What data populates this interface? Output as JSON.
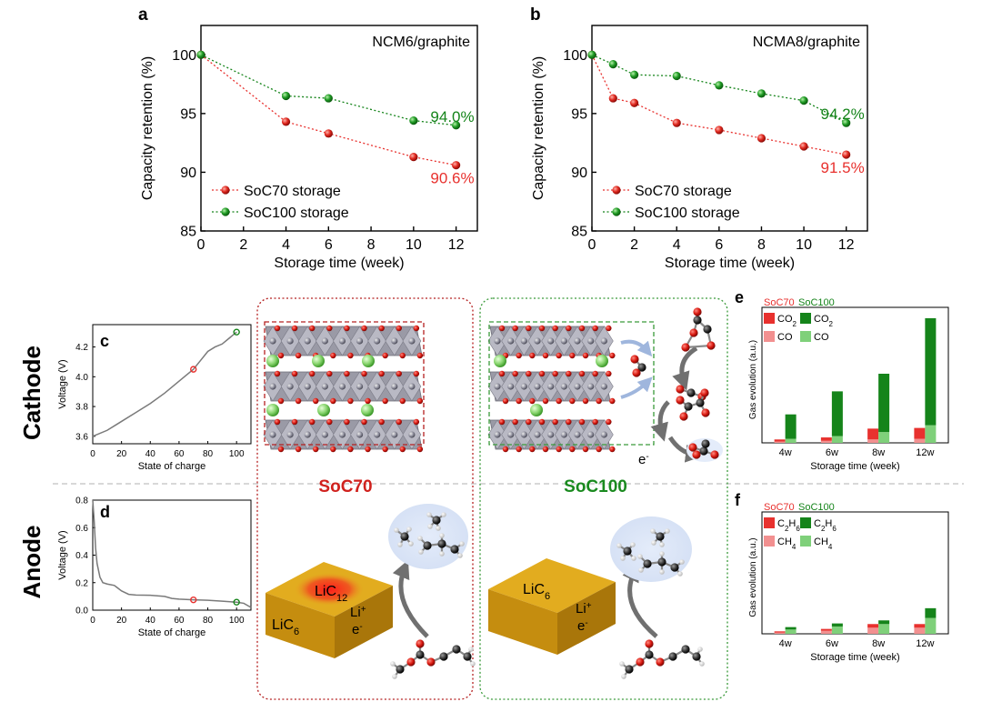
{
  "panel_letters": {
    "a": "a",
    "b": "b",
    "c": "c",
    "d": "d",
    "e": "e",
    "f": "f"
  },
  "row_labels": {
    "cathode": "Cathode",
    "anode": "Anode"
  },
  "section_titles": {
    "soc70": "SoC70",
    "soc100": "SoC100"
  },
  "colors": {
    "red": "#e8312e",
    "green": "#15841a",
    "light_red": "#f29090",
    "light_green": "#7fd07a",
    "box_red": "#b52020",
    "box_green": "#3a9a3a",
    "gold": "#d8a21c",
    "curve": "#7a7a7a"
  },
  "schematic": {
    "anode_block_70": {
      "main": "LiC",
      "main_sub": "6",
      "center": "LiC",
      "center_sub": "12",
      "ion": "Li",
      "ion_sup": "+",
      "electron": "e",
      "electron_sup": "-"
    },
    "anode_block_100": {
      "main": "LiC",
      "main_sub": "6",
      "ion": "Li",
      "ion_sup": "+",
      "electron": "e",
      "electron_sup": "-"
    },
    "cathode_electron": {
      "label": "e",
      "sup": "-"
    }
  },
  "chart_data": [
    {
      "id": "a",
      "type": "line",
      "annotation": "NCM6/graphite",
      "xlabel": "Storage time (week)",
      "ylabel": "Capacity retention (%)",
      "xlim": [
        0,
        13
      ],
      "ylim": [
        85,
        102.5
      ],
      "xticks": [
        "0",
        "2",
        "4",
        "6",
        "8",
        "10",
        "12"
      ],
      "yticks": [
        "85",
        "90",
        "95",
        "100"
      ],
      "series": [
        {
          "name": "SoC70 storage",
          "color": "#e8312e",
          "x": [
            0,
            4,
            6,
            10,
            12
          ],
          "y": [
            100,
            94.3,
            93.3,
            91.3,
            90.6
          ],
          "end_label": "90.6%"
        },
        {
          "name": "SoC100 storage",
          "color": "#15841a",
          "x": [
            0,
            4,
            6,
            10,
            12
          ],
          "y": [
            100,
            96.5,
            96.3,
            94.4,
            94.0
          ],
          "end_label": "94.0%"
        }
      ]
    },
    {
      "id": "b",
      "type": "line",
      "annotation": "NCMA8/graphite",
      "xlabel": "Storage time (week)",
      "ylabel": "Capacity retention (%)",
      "xlim": [
        0,
        13
      ],
      "ylim": [
        85,
        102.5
      ],
      "xticks": [
        "0",
        "2",
        "4",
        "6",
        "8",
        "10",
        "12"
      ],
      "yticks": [
        "85",
        "90",
        "95",
        "100"
      ],
      "series": [
        {
          "name": "SoC70 storage",
          "color": "#e8312e",
          "x": [
            0,
            1,
            2,
            4,
            6,
            8,
            10,
            12
          ],
          "y": [
            100,
            96.3,
            95.9,
            94.2,
            93.6,
            92.9,
            92.2,
            91.5
          ],
          "end_label": "91.5%"
        },
        {
          "name": "SoC100 storage",
          "color": "#15841a",
          "x": [
            0,
            1,
            2,
            4,
            6,
            8,
            10,
            12
          ],
          "y": [
            100,
            99.2,
            98.3,
            98.2,
            97.4,
            96.7,
            96.1,
            94.2
          ],
          "end_label": "94.2%"
        }
      ]
    },
    {
      "id": "c",
      "type": "line",
      "xlabel": "State of charge",
      "ylabel": "Voltage (V)",
      "xlim": [
        0,
        110
      ],
      "ylim": [
        3.55,
        4.35
      ],
      "xticks": [
        "0",
        "20",
        "40",
        "60",
        "80",
        "100"
      ],
      "yticks": [
        "3.6",
        "3.8",
        "4.0",
        "4.2"
      ],
      "series": [
        {
          "name": "cathode voltage",
          "x": [
            0,
            10,
            20,
            30,
            40,
            50,
            60,
            70,
            75,
            80,
            85,
            90,
            95,
            100
          ],
          "y": [
            3.6,
            3.64,
            3.7,
            3.76,
            3.82,
            3.89,
            3.97,
            4.05,
            4.11,
            4.17,
            4.2,
            4.22,
            4.26,
            4.3
          ]
        }
      ],
      "markers": [
        {
          "name": "SoC70",
          "x": 70,
          "y": 4.05
        },
        {
          "name": "SoC100",
          "x": 100,
          "y": 4.3
        }
      ]
    },
    {
      "id": "d",
      "type": "line",
      "xlabel": "State of charge",
      "ylabel": "Voltage (V)",
      "xlim": [
        0,
        110
      ],
      "ylim": [
        0,
        0.8
      ],
      "xticks": [
        "0",
        "20",
        "40",
        "60",
        "80",
        "100"
      ],
      "yticks": [
        "0.0",
        "0.2",
        "0.4",
        "0.6",
        "0.8"
      ],
      "series": [
        {
          "name": "anode voltage",
          "x": [
            0,
            1,
            2,
            3,
            5,
            7,
            10,
            15,
            20,
            25,
            30,
            40,
            50,
            55,
            60,
            70,
            80,
            90,
            100,
            105,
            110
          ],
          "y": [
            0.8,
            0.65,
            0.45,
            0.34,
            0.24,
            0.2,
            0.19,
            0.18,
            0.14,
            0.115,
            0.11,
            0.108,
            0.1,
            0.085,
            0.08,
            0.075,
            0.072,
            0.065,
            0.058,
            0.05,
            0.02
          ]
        }
      ],
      "markers": [
        {
          "name": "SoC70",
          "x": 70,
          "y": 0.075
        },
        {
          "name": "SoC100",
          "x": 100,
          "y": 0.058
        }
      ]
    },
    {
      "id": "e",
      "type": "bar",
      "xlabel": "Storage time (week)",
      "ylabel": "Gas evolution (a.u.)",
      "categories": [
        "4w",
        "6w",
        "8w",
        "12w"
      ],
      "ylim": [
        0,
        10
      ],
      "legend_titles": [
        "SoC70",
        "SoC100"
      ],
      "legend": [
        {
          "label": "CO",
          "sub": "2",
          "group": "SoC70",
          "color": "#e8312e"
        },
        {
          "label": "CO",
          "sub": "2",
          "group": "SoC100",
          "color": "#15841a"
        },
        {
          "label": "CO",
          "sub": "",
          "group": "SoC70",
          "color": "#f29090"
        },
        {
          "label": "CO",
          "sub": "",
          "group": "SoC100",
          "color": "#7fd07a"
        }
      ],
      "series": [
        {
          "name": "SoC70 CO",
          "color": "#f29090",
          "values": [
            0.1,
            0.15,
            0.25,
            0.3
          ]
        },
        {
          "name": "SoC70 CO2",
          "color": "#e8312e",
          "values": [
            0.15,
            0.25,
            0.8,
            0.8
          ]
        },
        {
          "name": "SoC100 CO",
          "color": "#7fd07a",
          "values": [
            0.3,
            0.5,
            0.8,
            1.3
          ]
        },
        {
          "name": "SoC100 CO2",
          "color": "#15841a",
          "values": [
            1.8,
            3.3,
            4.3,
            7.9
          ]
        }
      ]
    },
    {
      "id": "f",
      "type": "bar",
      "xlabel": "Storage time (week)",
      "ylabel": "Gas evolution (a.u.)",
      "categories": [
        "4w",
        "6w",
        "8w",
        "12w"
      ],
      "ylim": [
        0,
        10
      ],
      "legend_titles": [
        "SoC70",
        "SoC100"
      ],
      "legend": [
        {
          "label": "C",
          "sub": "2",
          "label2": "H",
          "sub2": "6",
          "group": "SoC70",
          "color": "#e8312e"
        },
        {
          "label": "C",
          "sub": "2",
          "label2": "H",
          "sub2": "6",
          "group": "SoC100",
          "color": "#15841a"
        },
        {
          "label": "CH",
          "sub": "4",
          "group": "SoC70",
          "color": "#f29090"
        },
        {
          "label": "CH",
          "sub": "4",
          "group": "SoC100",
          "color": "#7fd07a"
        }
      ],
      "series": [
        {
          "name": "SoC70 CH4",
          "color": "#f29090",
          "values": [
            0.1,
            0.25,
            0.5,
            0.5
          ]
        },
        {
          "name": "SoC70 C2H6",
          "color": "#e8312e",
          "values": [
            0.1,
            0.15,
            0.3,
            0.3
          ]
        },
        {
          "name": "SoC100 CH4",
          "color": "#7fd07a",
          "values": [
            0.35,
            0.6,
            0.8,
            1.3
          ]
        },
        {
          "name": "SoC100 C2H6",
          "color": "#15841a",
          "values": [
            0.2,
            0.25,
            0.3,
            0.8
          ]
        }
      ]
    }
  ]
}
